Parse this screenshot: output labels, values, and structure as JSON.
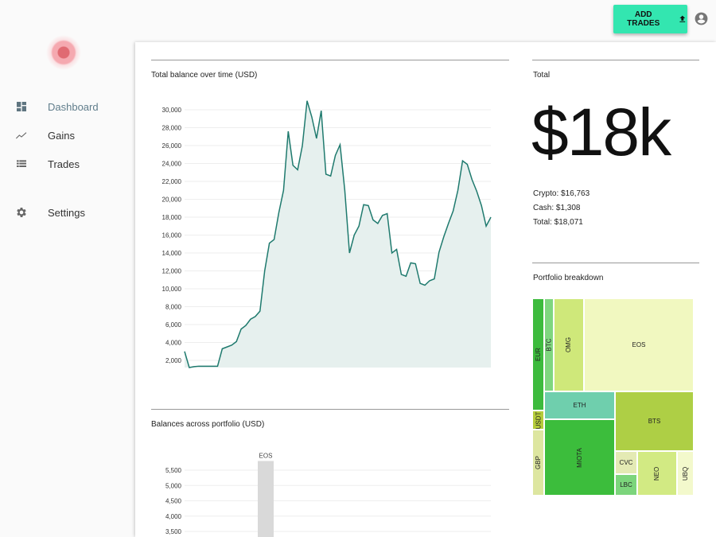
{
  "header": {
    "add_trades_label": "ADD TRADES",
    "upload_icon": "upload-icon",
    "account_icon": "account-circle-icon",
    "accent": "#33e6b0"
  },
  "sidebar": {
    "items": [
      {
        "label": "Dashboard",
        "icon": "dashboard-icon",
        "active": true
      },
      {
        "label": "Gains",
        "icon": "trending-icon"
      },
      {
        "label": "Trades",
        "icon": "list-icon"
      },
      {
        "label": "Settings",
        "icon": "gear-icon"
      }
    ]
  },
  "balance_chart": {
    "title": "Total balance over time (USD)"
  },
  "total": {
    "title": "Total",
    "big": "$18k",
    "crypto": "Crypto: $16,763",
    "cash": "Cash: $1,308",
    "total": "Total: $18,071"
  },
  "breakdown": {
    "title": "Portfolio breakdown",
    "labels": {
      "eur": "EUR",
      "btc": "BTC",
      "omg": "OMG",
      "eos": "EOS",
      "usdt": "USDT",
      "gbp": "GBP",
      "eth": "ETH",
      "miota": "MIOTA",
      "bts": "BTS",
      "cvc": "CVC",
      "lbc": "LBC",
      "neo": "NEO",
      "ubq": "UBQ"
    }
  },
  "portfolio_chart": {
    "title": "Balances across portfolio (USD)"
  },
  "chart_data": [
    {
      "type": "area",
      "title": "Total balance over time (USD)",
      "ylim": [
        1200,
        31000
      ],
      "yticks": [
        2000,
        4000,
        6000,
        8000,
        10000,
        12000,
        14000,
        16000,
        18000,
        20000,
        22000,
        24000,
        26000,
        28000,
        30000
      ],
      "ytick_labels": [
        "2,000",
        "4,000",
        "6,000",
        "8,000",
        "10,000",
        "12,000",
        "14,000",
        "16,000",
        "18,000",
        "20,000",
        "22,000",
        "24,000",
        "26,000",
        "28,000",
        "30,000"
      ],
      "grid": true,
      "color": "#1f7a6e",
      "values": [
        3000,
        1200,
        1300,
        1350,
        1350,
        1350,
        1350,
        1350,
        3300,
        3500,
        3700,
        4100,
        5500,
        5900,
        6600,
        6900,
        7500,
        12000,
        15100,
        15500,
        18500,
        21000,
        27600,
        23800,
        23300,
        26000,
        31000,
        29200,
        26800,
        29900,
        22800,
        22600,
        24900,
        26100,
        21000,
        14000,
        16000,
        17000,
        19400,
        19300,
        17700,
        17300,
        18200,
        18400,
        14000,
        14400,
        11600,
        11400,
        12900,
        12800,
        10600,
        10400,
        10900,
        11100,
        14100,
        15800,
        17300,
        18700,
        21000,
        24300,
        23900,
        22200,
        20900,
        19300,
        17000,
        18000
      ]
    },
    {
      "type": "bar",
      "title": "Balances across portfolio (USD)",
      "categories": [
        "EOS"
      ],
      "values": [
        5800
      ],
      "yticks": [
        3500,
        4000,
        4500,
        5000,
        5500
      ],
      "ytick_labels": [
        "3,500",
        "4,000",
        "4,500",
        "5,000",
        "5,500"
      ],
      "grid": true,
      "color": "#d9d9d9"
    }
  ]
}
